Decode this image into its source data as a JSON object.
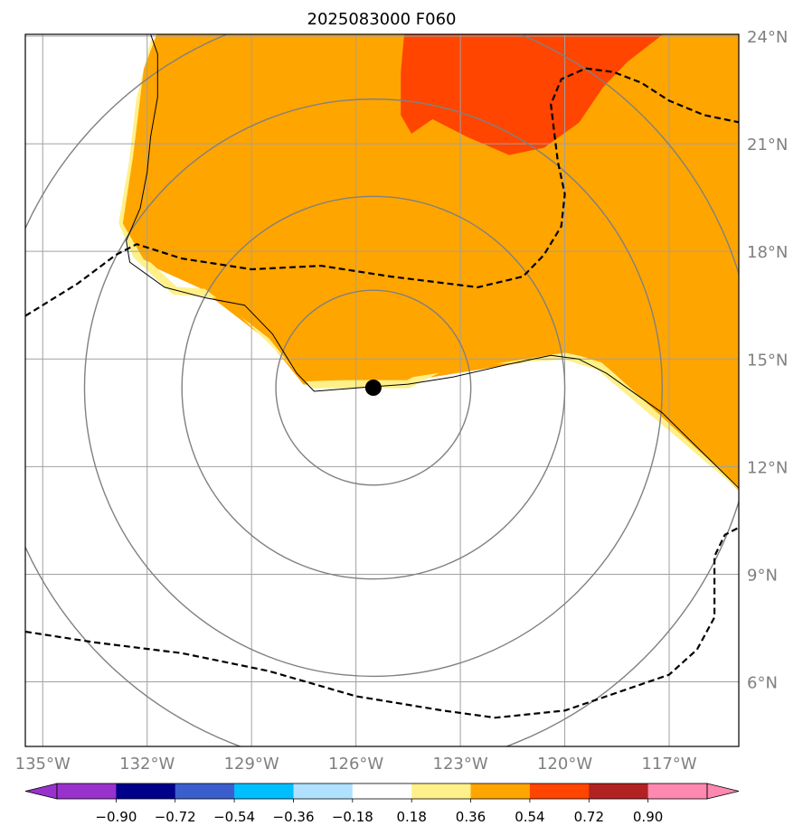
{
  "chart_data": {
    "type": "map",
    "title": "2025083000 F060",
    "lon_range": [
      -135.5,
      -115
    ],
    "lat_range": [
      4.2,
      24.05
    ],
    "lon_ticks": [
      {
        "value": -135,
        "label": "135°W"
      },
      {
        "value": -132,
        "label": "132°W"
      },
      {
        "value": -129,
        "label": "129°W"
      },
      {
        "value": -126,
        "label": "126°W"
      },
      {
        "value": -123,
        "label": "123°W"
      },
      {
        "value": -120,
        "label": "120°W"
      },
      {
        "value": -117,
        "label": "117°W"
      }
    ],
    "lat_ticks": [
      {
        "value": 24,
        "label": "24°N"
      },
      {
        "value": 21,
        "label": "21°N"
      },
      {
        "value": 18,
        "label": "18°N"
      },
      {
        "value": 15,
        "label": "15°N"
      },
      {
        "value": 12,
        "label": "12°N"
      },
      {
        "value": 9,
        "label": "9°N"
      },
      {
        "value": 6,
        "label": "6°N"
      }
    ],
    "center": {
      "lon": -125.5,
      "lat": 14.2
    },
    "range_rings_deg": [
      2.8,
      5.5,
      8.3,
      11.0
    ],
    "fill_regions": [
      {
        "name": "0.36-0.54",
        "color": "#ffa500",
        "points": [
          [
            -131.7,
            24.05
          ],
          [
            -115,
            24.05
          ],
          [
            -115,
            11.35
          ],
          [
            -119.0,
            14.9
          ],
          [
            -120.0,
            15.1
          ],
          [
            -124.5,
            14.4
          ],
          [
            -127.5,
            14.3
          ],
          [
            -128.5,
            15.5
          ],
          [
            -130.5,
            17.0
          ],
          [
            -132.1,
            17.7
          ],
          [
            -132.7,
            18.7
          ],
          [
            -132.4,
            20.6
          ],
          [
            -132.1,
            23.0
          ]
        ]
      },
      {
        "name": "0.54-0.72",
        "color": "#ff4500",
        "points": [
          [
            -124.6,
            24.05
          ],
          [
            -117.2,
            24.05
          ],
          [
            -118.2,
            23.3
          ],
          [
            -118.9,
            22.6
          ],
          [
            -119.6,
            21.6
          ],
          [
            -120.6,
            20.9
          ],
          [
            -121.6,
            20.7
          ],
          [
            -122.8,
            21.2
          ],
          [
            -123.8,
            21.7
          ],
          [
            -124.4,
            21.3
          ],
          [
            -124.7,
            21.8
          ],
          [
            -124.7,
            23.0
          ]
        ]
      }
    ],
    "fill_edges": [
      {
        "name": "0.18-0.36 edge",
        "color": "#fff08a",
        "width": 9,
        "points": [
          [
            -131.8,
            23.8
          ],
          [
            -132.2,
            22.2
          ],
          [
            -132.4,
            20.5
          ],
          [
            -132.7,
            18.8
          ],
          [
            -132.3,
            17.9
          ],
          [
            -131.2,
            16.9
          ],
          [
            -129.8,
            16.8
          ],
          [
            -128.3,
            15.4
          ],
          [
            -127.2,
            14.3
          ],
          [
            -124.5,
            14.3
          ],
          [
            -123.3,
            14.9
          ],
          [
            -121.6,
            15.0
          ],
          [
            -120.0,
            15.1
          ],
          [
            -119.0,
            14.8
          ],
          [
            -116.7,
            12.9
          ],
          [
            -115,
            11.5
          ]
        ]
      }
    ],
    "contours_dashed": [
      {
        "name": "upper contour",
        "points": [
          [
            -135.5,
            16.2
          ],
          [
            -134.0,
            17.1
          ],
          [
            -132.9,
            17.9
          ],
          [
            -132.3,
            18.2
          ],
          [
            -131.0,
            17.8
          ],
          [
            -129.0,
            17.5
          ],
          [
            -127.0,
            17.6
          ],
          [
            -125.0,
            17.3
          ],
          [
            -122.5,
            17.0
          ],
          [
            -121.2,
            17.3
          ],
          [
            -120.6,
            17.9
          ],
          [
            -120.1,
            18.7
          ],
          [
            -120.0,
            19.6
          ],
          [
            -120.2,
            20.5
          ],
          [
            -120.3,
            21.3
          ],
          [
            -120.4,
            22.1
          ],
          [
            -120.1,
            22.8
          ],
          [
            -119.4,
            23.1
          ],
          [
            -118.6,
            23.0
          ],
          [
            -117.8,
            22.7
          ],
          [
            -117.0,
            22.2
          ],
          [
            -116.0,
            21.8
          ],
          [
            -115,
            21.6
          ]
        ]
      },
      {
        "name": "lower contour",
        "points": [
          [
            -135.5,
            7.4
          ],
          [
            -133.5,
            7.1
          ],
          [
            -131.0,
            6.8
          ],
          [
            -128.5,
            6.3
          ],
          [
            -126.0,
            5.6
          ],
          [
            -123.5,
            5.2
          ],
          [
            -122.0,
            5.0
          ],
          [
            -120.0,
            5.2
          ],
          [
            -118.5,
            5.7
          ],
          [
            -117.0,
            6.2
          ],
          [
            -116.2,
            6.9
          ],
          [
            -115.7,
            7.8
          ],
          [
            -115.7,
            8.7
          ],
          [
            -115.7,
            9.5
          ],
          [
            -115.4,
            10.1
          ],
          [
            -115,
            10.3
          ]
        ]
      }
    ],
    "coastline": {
      "color": "#000000",
      "points": [
        [
          -131.9,
          24.05
        ],
        [
          -131.7,
          23.5
        ],
        [
          -131.7,
          22.3
        ],
        [
          -131.9,
          21.2
        ],
        [
          -132.0,
          20.2
        ],
        [
          -132.2,
          19.2
        ],
        [
          -132.6,
          18.3
        ],
        [
          -132.5,
          17.7
        ],
        [
          -131.5,
          17.0
        ],
        [
          -130.3,
          16.7
        ],
        [
          -129.2,
          16.5
        ],
        [
          -128.4,
          15.7
        ],
        [
          -127.7,
          14.6
        ],
        [
          -127.2,
          14.1
        ],
        [
          -125.9,
          14.2
        ],
        [
          -124.5,
          14.3
        ],
        [
          -123.2,
          14.5
        ],
        [
          -121.4,
          14.9
        ],
        [
          -120.4,
          15.1
        ],
        [
          -119.6,
          15.0
        ],
        [
          -118.8,
          14.6
        ],
        [
          -117.2,
          13.5
        ],
        [
          -115,
          11.4
        ]
      ]
    },
    "colorbar": {
      "colors": [
        "#9932cc",
        "#00008b",
        "#3a5fcd",
        "#00bfff",
        "#b0e2ff",
        "#ffffff",
        "#fff08a",
        "#ffa500",
        "#ff4500",
        "#b22222",
        "#ff88b0",
        "#ff88b0"
      ],
      "tick_labels": [
        "−0.90",
        "−0.72",
        "−0.54",
        "−0.36",
        "−0.18",
        "0.18",
        "0.36",
        "0.54",
        "0.72",
        "0.90"
      ]
    }
  }
}
